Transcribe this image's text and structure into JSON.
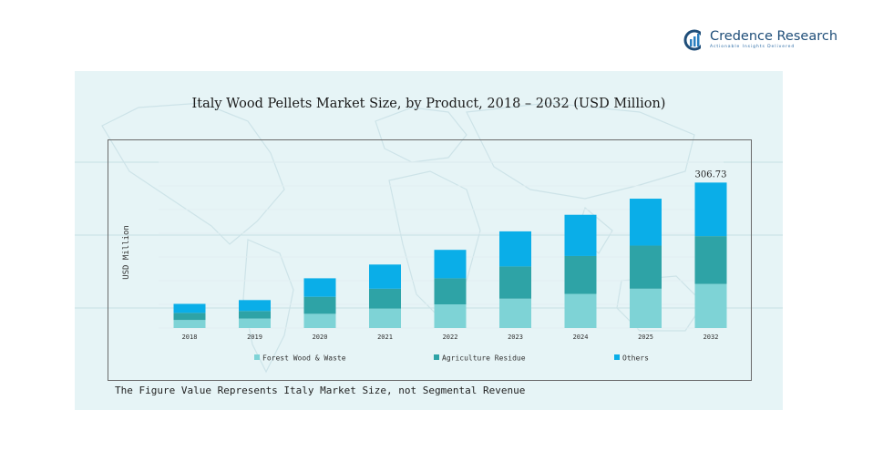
{
  "brand": {
    "name": "Credence Research",
    "tagline": "Actionable Insights Delivered",
    "icon": "credence-logo-icon"
  },
  "footnote": "The Figure Value Represents Italy Market Size, not Segmental Revenue",
  "chart_data": {
    "type": "bar",
    "stacked": true,
    "title": "Italy Wood Pellets Market Size, by Product, 2018 – 2032 (USD Million)",
    "xlabel": "",
    "ylabel": "USD Million",
    "categories": [
      "2018",
      "2019",
      "2020",
      "2021",
      "2022",
      "2023",
      "2024",
      "2025",
      "2032"
    ],
    "series": [
      {
        "name": "Forest Wood & Waste",
        "color": "#7ed3d6",
        "values": [
          17,
          20,
          30,
          41,
          50,
          62,
          72,
          83,
          93
        ]
      },
      {
        "name": "Agriculture Residue",
        "color": "#2ea3a6",
        "values": [
          15,
          16,
          36,
          42,
          55,
          68,
          80,
          91,
          101
        ]
      },
      {
        "name": "Others",
        "color": "#0aaee8",
        "values": [
          19,
          23,
          39,
          51,
          60,
          74,
          87,
          99,
          113
        ]
      }
    ],
    "annotations": [
      {
        "category": "2032",
        "text": "306.73"
      }
    ],
    "ylim": [
      0,
      350
    ],
    "grid": true,
    "legend": "bottom"
  }
}
